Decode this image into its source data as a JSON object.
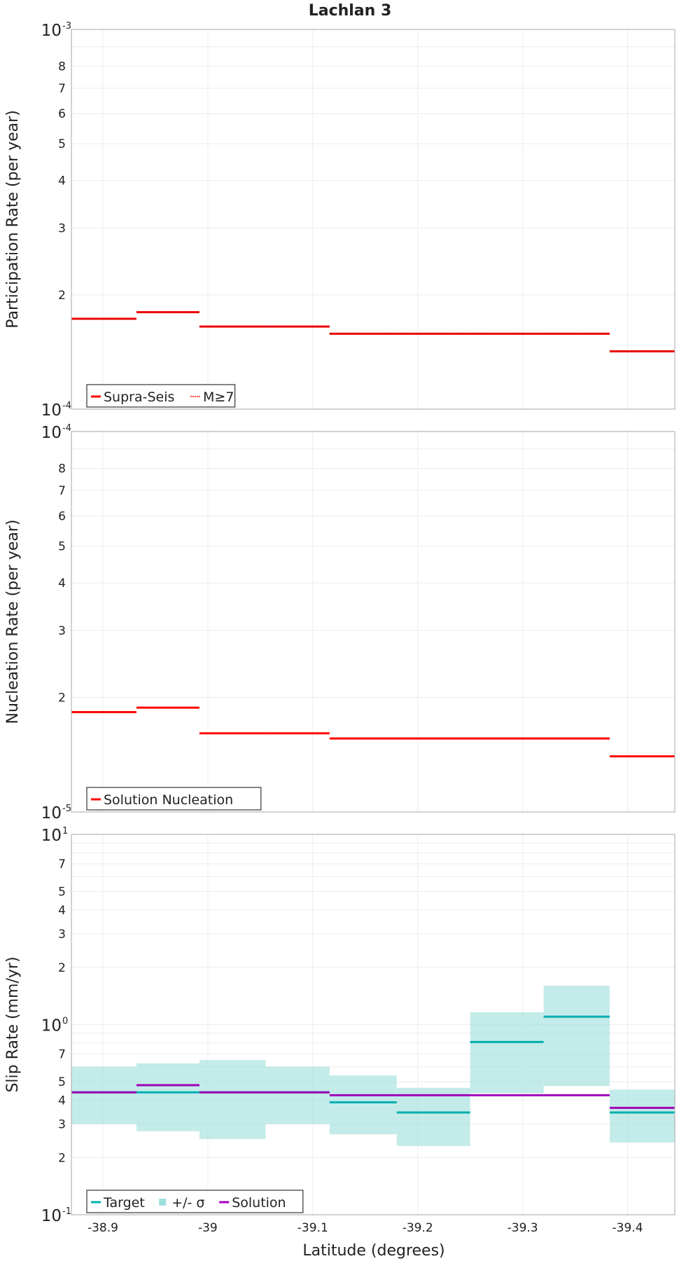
{
  "chart_data": {
    "type": "line",
    "title": "Lachlan 3",
    "xlabel": "Latitude (degrees)",
    "xlim": [
      -38.87,
      -39.445
    ],
    "x_ticks": [
      -38.9,
      -39.0,
      -39.1,
      -39.2,
      -39.3,
      -39.4
    ],
    "x_tick_labels": [
      "-38.9",
      "-39",
      "-39.1",
      "-39.2",
      "-39.3",
      "-39.4"
    ],
    "bins": [
      [
        -38.87,
        -38.932
      ],
      [
        -38.932,
        -38.992
      ],
      [
        -38.992,
        -39.055
      ],
      [
        -39.055,
        -39.116
      ],
      [
        -39.116,
        -39.18
      ],
      [
        -39.18,
        -39.25
      ],
      [
        -39.25,
        -39.32
      ],
      [
        -39.32,
        -39.383
      ],
      [
        -39.383,
        -39.445
      ]
    ],
    "panels": [
      {
        "ylabel": "Participation Rate (per year)",
        "ylim": [
          0.0001,
          0.001
        ],
        "major_tick_labels": [
          {
            "base": "10",
            "exp": "-3",
            "value": 0.001
          },
          {
            "base": "10",
            "exp": "-4",
            "value": 0.0001
          }
        ],
        "minor_tick_labels": [
          "2",
          "3",
          "4",
          "5",
          "6",
          "7",
          "8"
        ],
        "minor_tick_values": [
          0.0002,
          0.0003,
          0.0004,
          0.0005,
          0.0006,
          0.0007,
          0.0008
        ],
        "series": [
          {
            "name": "Supra-Seis",
            "style": "solid",
            "color": "#ff0000",
            "values": [
              0.000173,
              0.00018,
              0.000165,
              0.000165,
              0.000158,
              0.000158,
              0.000158,
              0.000158,
              0.000142
            ]
          },
          {
            "name": "M≥7",
            "style": "dotted",
            "color": "#ff0000",
            "values": [
              0.000173,
              0.00018,
              0.000165,
              0.000165,
              0.000158,
              0.000158,
              0.000158,
              0.000158,
              0.000142
            ]
          }
        ],
        "legend": [
          {
            "label": "Supra-Seis",
            "style": "solid",
            "color": "#ff0000"
          },
          {
            "label": "M≥7",
            "style": "dotted",
            "color": "#ff0000"
          }
        ]
      },
      {
        "ylabel": "Nucleation Rate (per year)",
        "ylim": [
          1e-05,
          0.0001
        ],
        "major_tick_labels": [
          {
            "base": "10",
            "exp": "-4",
            "value": 0.0001
          },
          {
            "base": "10",
            "exp": "-5",
            "value": 1e-05
          }
        ],
        "minor_tick_labels": [
          "2",
          "3",
          "4",
          "5",
          "6",
          "7",
          "8"
        ],
        "minor_tick_values": [
          2e-05,
          3e-05,
          4e-05,
          5e-05,
          6e-05,
          7e-05,
          8e-05
        ],
        "series": [
          {
            "name": "Solution Nucleation",
            "style": "solid",
            "color": "#ff0000",
            "values": [
              1.83e-05,
              1.88e-05,
              1.61e-05,
              1.61e-05,
              1.56e-05,
              1.56e-05,
              1.56e-05,
              1.56e-05,
              1.4e-05
            ]
          }
        ],
        "legend": [
          {
            "label": "Solution Nucleation",
            "style": "solid",
            "color": "#ff0000"
          }
        ]
      },
      {
        "ylabel": "Slip Rate (mm/yr)",
        "ylim": [
          0.1,
          10
        ],
        "major_tick_labels": [
          {
            "base": "10",
            "exp": "1",
            "value": 10
          },
          {
            "base": "10",
            "exp": "0",
            "value": 1
          },
          {
            "base": "10",
            "exp": "-1",
            "value": 0.1
          }
        ],
        "minor_tick_labels": [
          "7",
          "5",
          "4",
          "3",
          "2",
          "7",
          "5",
          "4",
          "3",
          "2"
        ],
        "minor_tick_values": [
          7,
          5,
          4,
          3,
          2,
          0.7,
          0.5,
          0.4,
          0.3,
          0.2
        ],
        "band": {
          "name": "+/- σ",
          "color": "#9edfdc",
          "lower": [
            0.3,
            0.275,
            0.25,
            0.3,
            0.265,
            0.23,
            0.435,
            0.475,
            0.24
          ],
          "upper": [
            0.6,
            0.625,
            0.65,
            0.6,
            0.54,
            0.465,
            1.16,
            1.6,
            0.455
          ]
        },
        "series": [
          {
            "name": "Target",
            "style": "solid",
            "color": "#00b0b0",
            "values": [
              0.44,
              0.44,
              0.44,
              0.44,
              0.39,
              0.345,
              0.81,
              1.1,
              0.345
            ]
          },
          {
            "name": "Solution",
            "style": "solid",
            "color": "#a000b8",
            "values": [
              0.44,
              0.48,
              0.44,
              0.44,
              0.425,
              0.425,
              0.425,
              0.425,
              0.365
            ]
          }
        ],
        "legend": [
          {
            "label": "Target",
            "style": "solid",
            "color": "#00b0b0"
          },
          {
            "label": "+/- σ",
            "style": "box",
            "color": "#9edfdc"
          },
          {
            "label": "Solution",
            "style": "solid",
            "color": "#a000b8"
          }
        ]
      }
    ]
  }
}
